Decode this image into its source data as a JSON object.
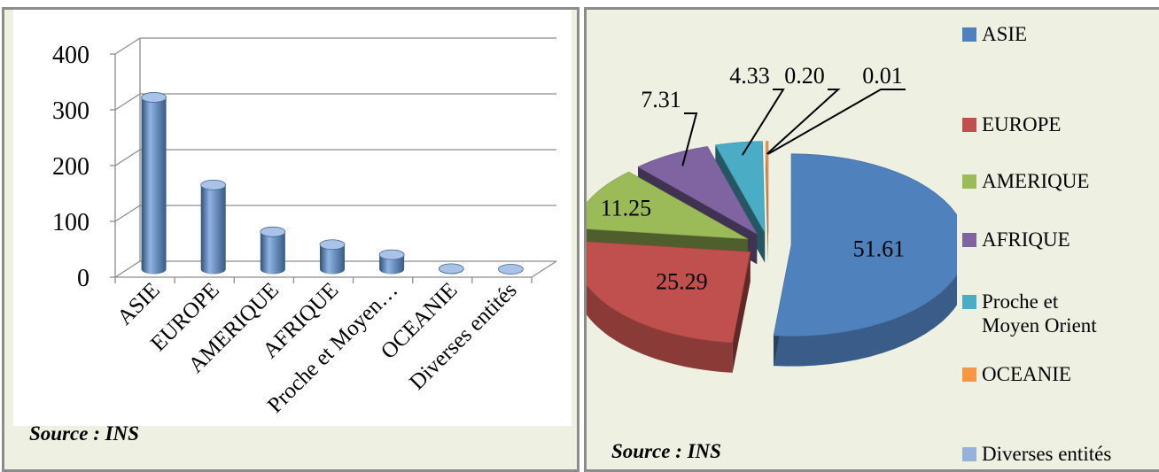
{
  "chart_data": [
    {
      "type": "bar",
      "categories": [
        "ASIE",
        "EUROPE",
        "AMERIQUE",
        "AFRIQUE",
        "Proche et Moyen…",
        "OCEANIE",
        "Diverses entités"
      ],
      "values": [
        308,
        151,
        67,
        44,
        26,
        1,
        0.05
      ],
      "ylim": [
        0,
        400
      ],
      "yticks": [
        0,
        100,
        200,
        300,
        400
      ],
      "grid": true,
      "color": "#4f81bd",
      "source": "Source : INS"
    },
    {
      "type": "pie",
      "labels": [
        "ASIE",
        "EUROPE",
        "AMERIQUE",
        "AFRIQUE",
        "Proche et Moyen Orient",
        "OCEANIE",
        "Diverses entités"
      ],
      "values": [
        51.61,
        25.29,
        11.25,
        7.31,
        4.33,
        0.2,
        0.01
      ],
      "data_labels": [
        "51.61",
        "25.29",
        "11.25",
        "7.31",
        "4.33",
        "0.20",
        "0.01"
      ],
      "colors": [
        "#4f81bd",
        "#c0504d",
        "#9bbb59",
        "#8064a2",
        "#4bacc6",
        "#f79646",
        "#95b3d7"
      ],
      "legend_position": "right",
      "source": "Source : INS"
    }
  ]
}
